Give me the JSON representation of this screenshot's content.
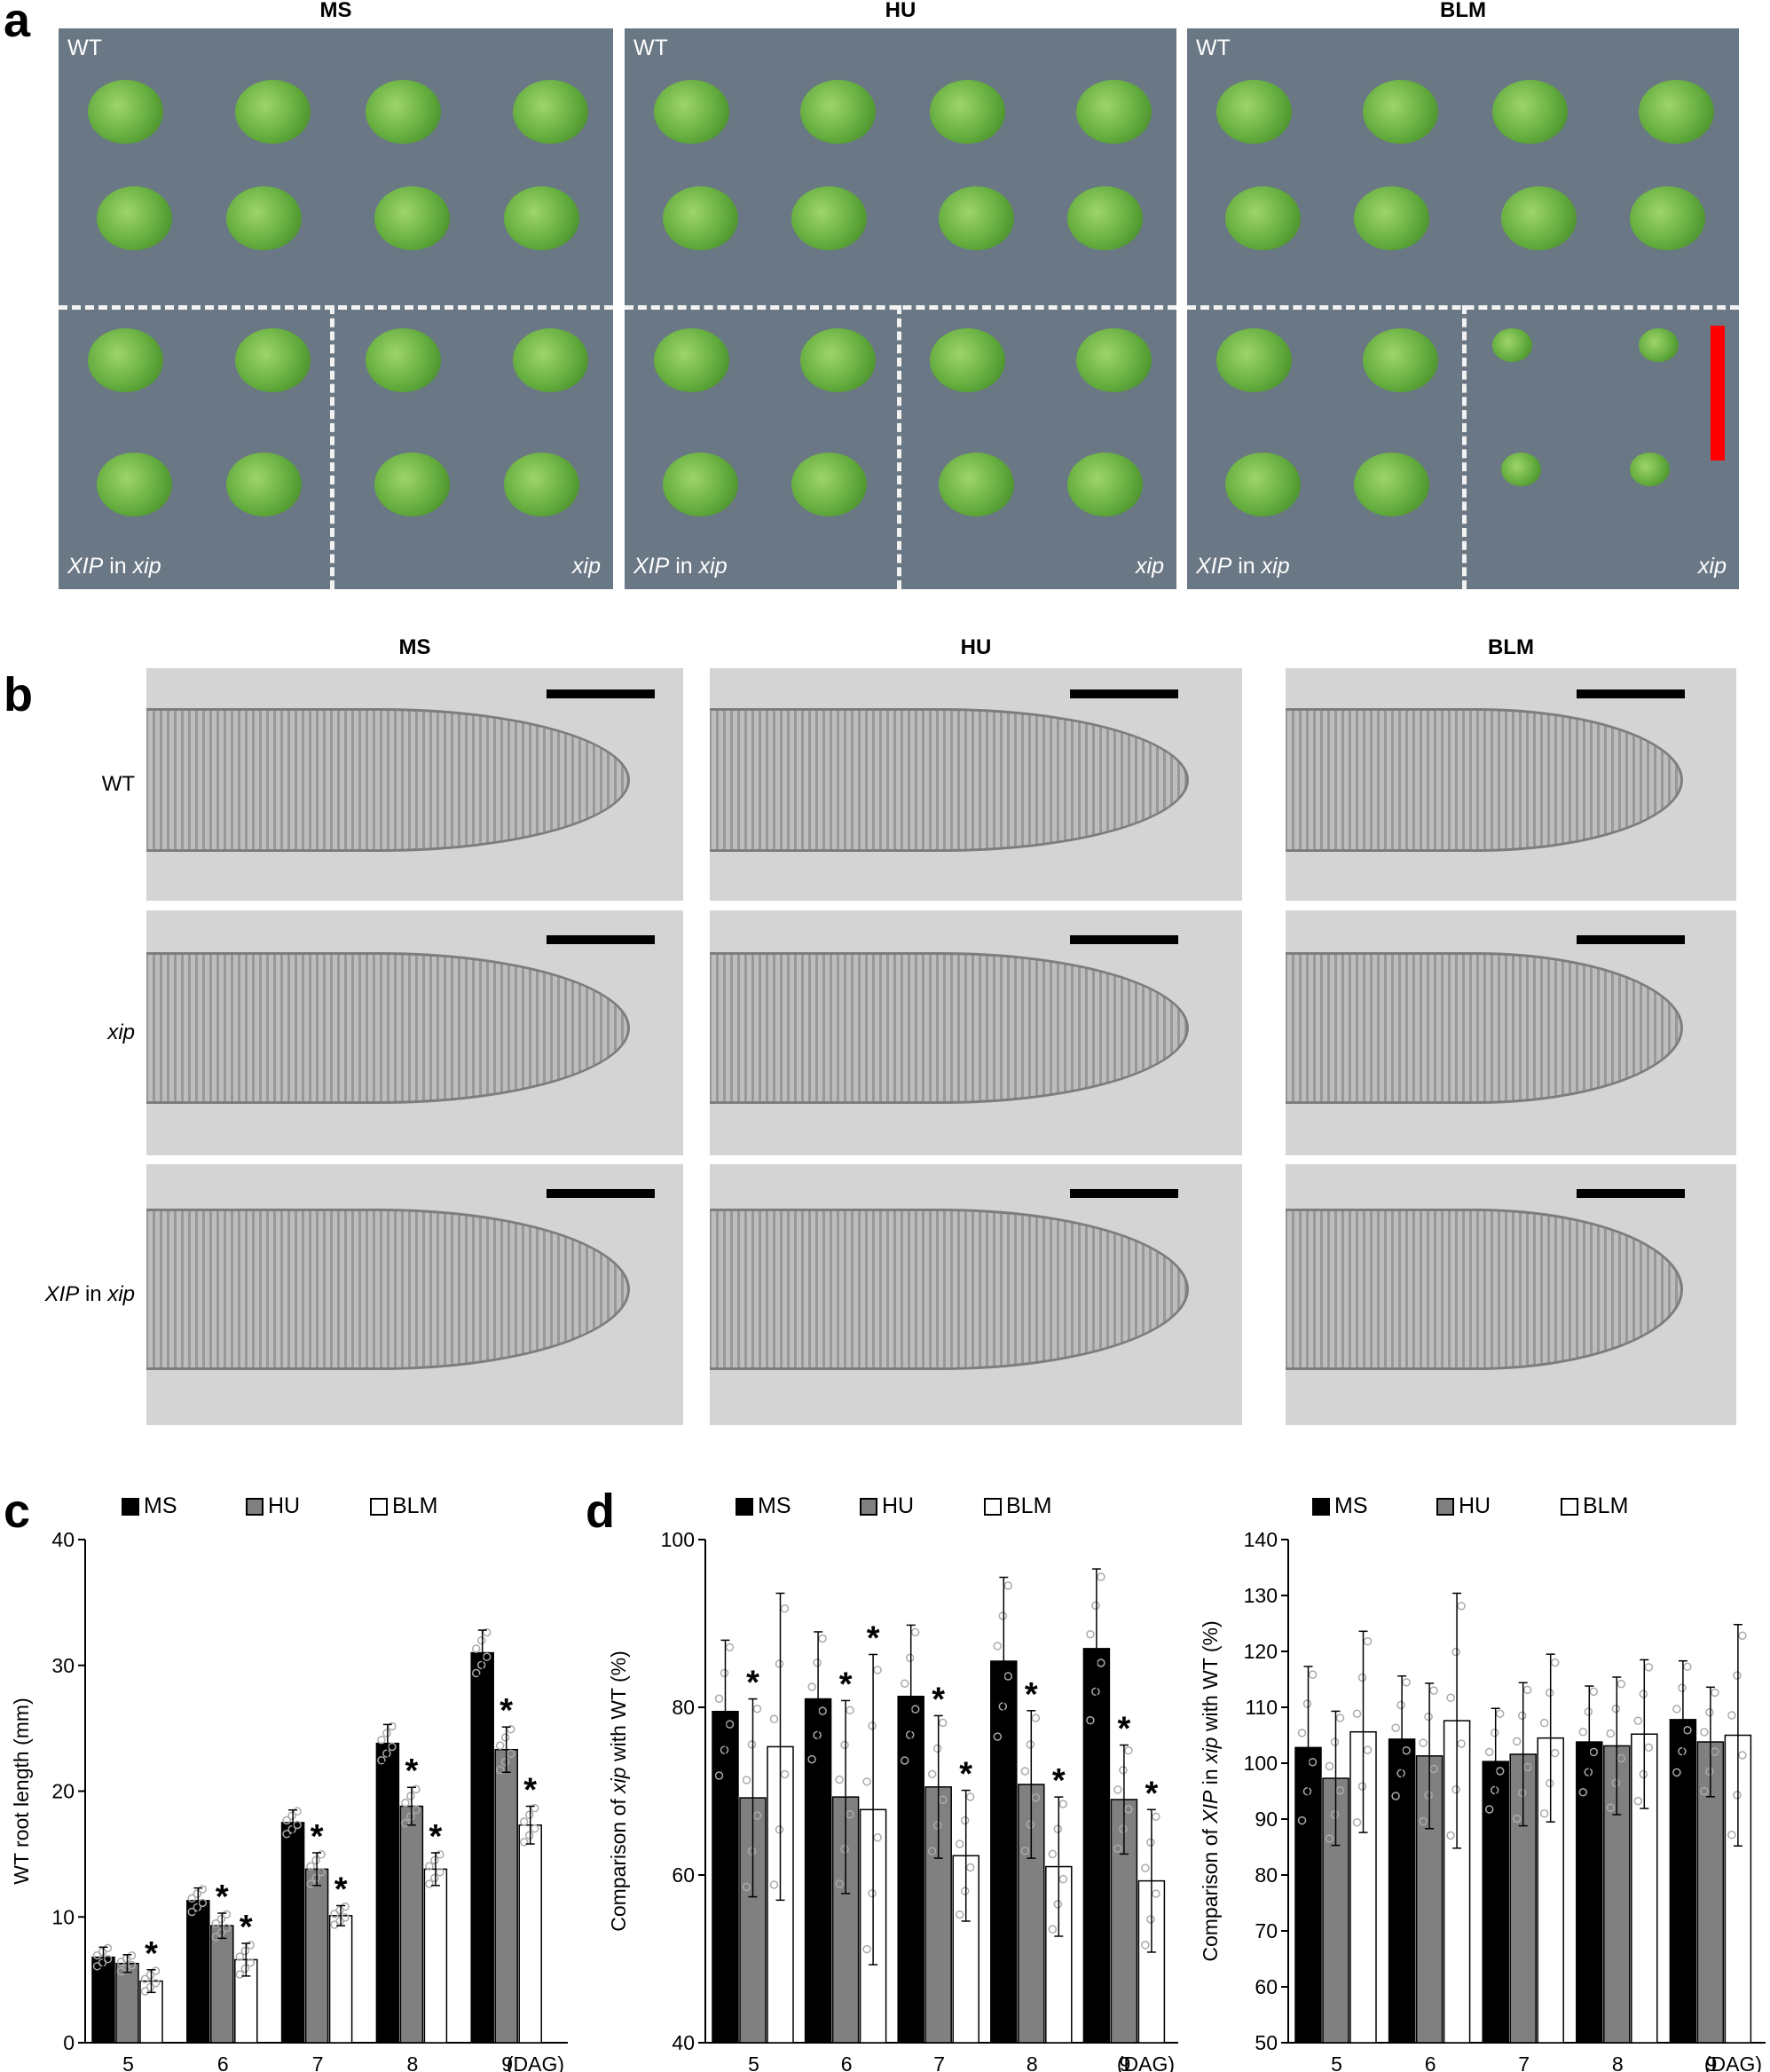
{
  "panel_a": {
    "letter": "a",
    "columns": [
      {
        "title": "MS",
        "top_label": "WT",
        "bottom_left_label_italic": "XIP",
        "bottom_left_label_rest": " in ",
        "bottom_left_label_italic2": "xip",
        "bottom_right_label": "xip"
      },
      {
        "title": "HU",
        "top_label": "WT",
        "bottom_left_label_italic": "XIP",
        "bottom_left_label_rest": " in ",
        "bottom_left_label_italic2": "xip",
        "bottom_right_label": "xip"
      },
      {
        "title": "BLM",
        "top_label": "WT",
        "bottom_left_label_italic": "XIP",
        "bottom_left_label_rest": " in ",
        "bottom_left_label_italic2": "xip",
        "bottom_right_label": "xip"
      }
    ],
    "colors": {
      "plate": "#6a7784",
      "seedling": "#5ea83a",
      "scale_bar": "#ff0000"
    }
  },
  "panel_b": {
    "letter": "b",
    "column_titles": [
      "MS",
      "HU",
      "BLM"
    ],
    "row_labels": [
      {
        "italic": "",
        "rest": "WT"
      },
      {
        "italic": "xip",
        "rest": ""
      },
      {
        "italic": "XIP",
        "rest": " in ",
        "italic2": "xip"
      }
    ]
  },
  "panel_c": {
    "letter": "c"
  },
  "panel_d": {
    "letter": "d"
  },
  "chart_data": [
    {
      "type": "bar",
      "panel": "c",
      "ylabel": "WT root length (mm)",
      "xunit": "(DAG)",
      "categories": [
        "5",
        "6",
        "7",
        "8",
        "9"
      ],
      "ylim": [
        0,
        40
      ],
      "yticks": [
        0,
        10,
        20,
        30,
        40
      ],
      "legend": [
        "MS",
        "HU",
        "BLM"
      ],
      "series": [
        {
          "name": "MS",
          "color": "#000000",
          "values": [
            6.8,
            11.3,
            17.5,
            23.8,
            31.0
          ],
          "err": [
            0.8,
            1.0,
            1.0,
            1.5,
            1.8
          ],
          "sig": [
            false,
            false,
            false,
            false,
            false
          ]
        },
        {
          "name": "HU",
          "color": "#808080",
          "values": [
            6.3,
            9.3,
            13.8,
            18.8,
            23.3
          ],
          "err": [
            0.7,
            1.0,
            1.3,
            1.5,
            1.8
          ],
          "sig": [
            false,
            true,
            true,
            true,
            true
          ]
        },
        {
          "name": "BLM",
          "color": "#ffffff",
          "values": [
            4.9,
            6.6,
            10.1,
            13.8,
            17.3
          ],
          "err": [
            0.9,
            1.3,
            0.8,
            1.3,
            1.5
          ],
          "sig": [
            true,
            true,
            true,
            true,
            true
          ]
        }
      ]
    },
    {
      "type": "bar",
      "panel": "d-left",
      "ylabel_parts": [
        "Comparison of ",
        "xip",
        " with WT (%)"
      ],
      "xunit": "(DAG)",
      "categories": [
        "5",
        "6",
        "7",
        "8",
        "9"
      ],
      "ylim": [
        40,
        100
      ],
      "yticks": [
        40,
        60,
        80,
        100
      ],
      "legend": [
        "MS",
        "HU",
        "BLM"
      ],
      "series": [
        {
          "name": "MS",
          "color": "#000000",
          "values": [
            79.5,
            81.0,
            81.3,
            85.5,
            87.0
          ],
          "err": [
            8.5,
            8.0,
            8.5,
            10.0,
            9.5
          ],
          "sig": [
            false,
            false,
            false,
            false,
            false
          ]
        },
        {
          "name": "HU",
          "color": "#808080",
          "values": [
            69.2,
            69.3,
            70.5,
            70.8,
            69.0
          ],
          "err": [
            11.8,
            11.5,
            8.5,
            8.8,
            6.5
          ],
          "sig": [
            true,
            true,
            true,
            true,
            true
          ]
        },
        {
          "name": "BLM",
          "color": "#ffffff",
          "values": [
            75.3,
            67.8,
            62.3,
            61.0,
            59.3
          ],
          "err": [
            18.3,
            18.5,
            7.8,
            8.3,
            8.5
          ],
          "sig": [
            false,
            true,
            true,
            true,
            true
          ]
        }
      ]
    },
    {
      "type": "bar",
      "panel": "d-right",
      "ylabel_parts": [
        "Comparison of ",
        "XIP",
        " in ",
        "xip",
        " with WT (%)"
      ],
      "xunit": "(DAG)",
      "categories": [
        "5",
        "6",
        "7",
        "8",
        "9"
      ],
      "ylim": [
        50,
        140
      ],
      "yticks": [
        50,
        60,
        70,
        80,
        90,
        100,
        110,
        120,
        130,
        140
      ],
      "legend": [
        "MS",
        "HU",
        "BLM"
      ],
      "series": [
        {
          "name": "MS",
          "color": "#000000",
          "values": [
            102.8,
            104.3,
            100.3,
            103.8,
            107.8
          ],
          "err": [
            14.5,
            11.3,
            9.5,
            10.0,
            10.5
          ],
          "sig": [
            false,
            false,
            false,
            false,
            false
          ]
        },
        {
          "name": "HU",
          "color": "#808080",
          "values": [
            97.3,
            101.3,
            101.6,
            103.1,
            103.8
          ],
          "err": [
            12.0,
            13.0,
            12.8,
            12.3,
            9.8
          ],
          "sig": [
            false,
            false,
            false,
            false,
            false
          ]
        },
        {
          "name": "BLM",
          "color": "#ffffff",
          "values": [
            105.6,
            107.6,
            104.5,
            105.2,
            105.0
          ],
          "err": [
            18.0,
            22.8,
            15.0,
            13.3,
            19.8
          ],
          "sig": [
            false,
            false,
            false,
            false,
            false
          ]
        }
      ]
    }
  ]
}
